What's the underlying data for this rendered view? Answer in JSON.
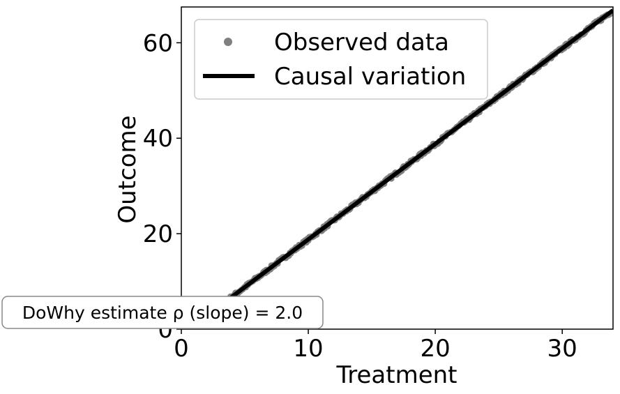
{
  "chart_data": {
    "type": "scatter",
    "xlabel": "Treatment",
    "ylabel": "Outcome",
    "xlim": [
      0,
      34
    ],
    "ylim": [
      0,
      67.5
    ],
    "xticks": [
      0,
      10,
      20,
      30
    ],
    "yticks": [
      0,
      20,
      40,
      60
    ],
    "grid": false,
    "legend_position": "top-left",
    "series": [
      {
        "name": "Observed data",
        "kind": "scatter",
        "color": "#808080",
        "x_range": [
          0,
          33.8
        ],
        "slope": 2.0,
        "intercept": -1.2,
        "noise": 0.35
      },
      {
        "name": "Causal variation",
        "kind": "line",
        "color": "#000000",
        "x": [
          0,
          34
        ],
        "y": [
          -1.2,
          66.8
        ]
      }
    ],
    "annotation": "DoWhy estimate ρ (slope) = 2.0"
  }
}
